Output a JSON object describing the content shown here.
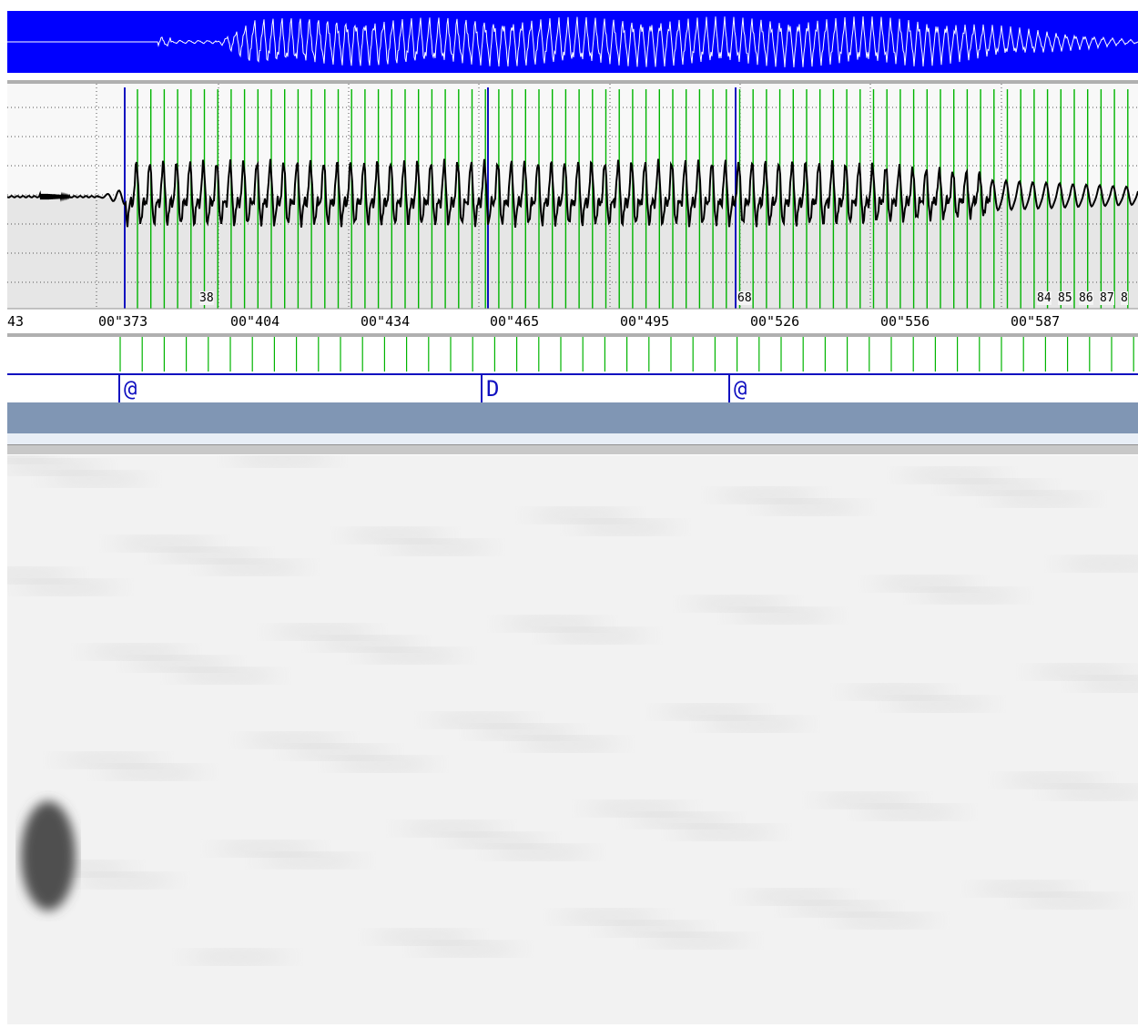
{
  "colors": {
    "overview_bg": "#0000ff",
    "pulse_green": "#00b400",
    "boundary_blue": "#1010c0",
    "waveform": "#000000",
    "status_bar": "#8096b4"
  },
  "timeline": {
    "ticks": [
      "43",
      "00\"373",
      "00\"404",
      "00\"434",
      "00\"465",
      "00\"495",
      "00\"526",
      "00\"556",
      "00\"587"
    ]
  },
  "pulse_markers": [
    "38",
    "68",
    "84",
    "85",
    "86",
    "87",
    "8"
  ],
  "segments": [
    {
      "label": "@"
    },
    {
      "label": "D"
    },
    {
      "label": "@"
    }
  ],
  "icons": {
    "overview": "waveform-overview-icon",
    "spectrogram": "spectrogram-image"
  }
}
